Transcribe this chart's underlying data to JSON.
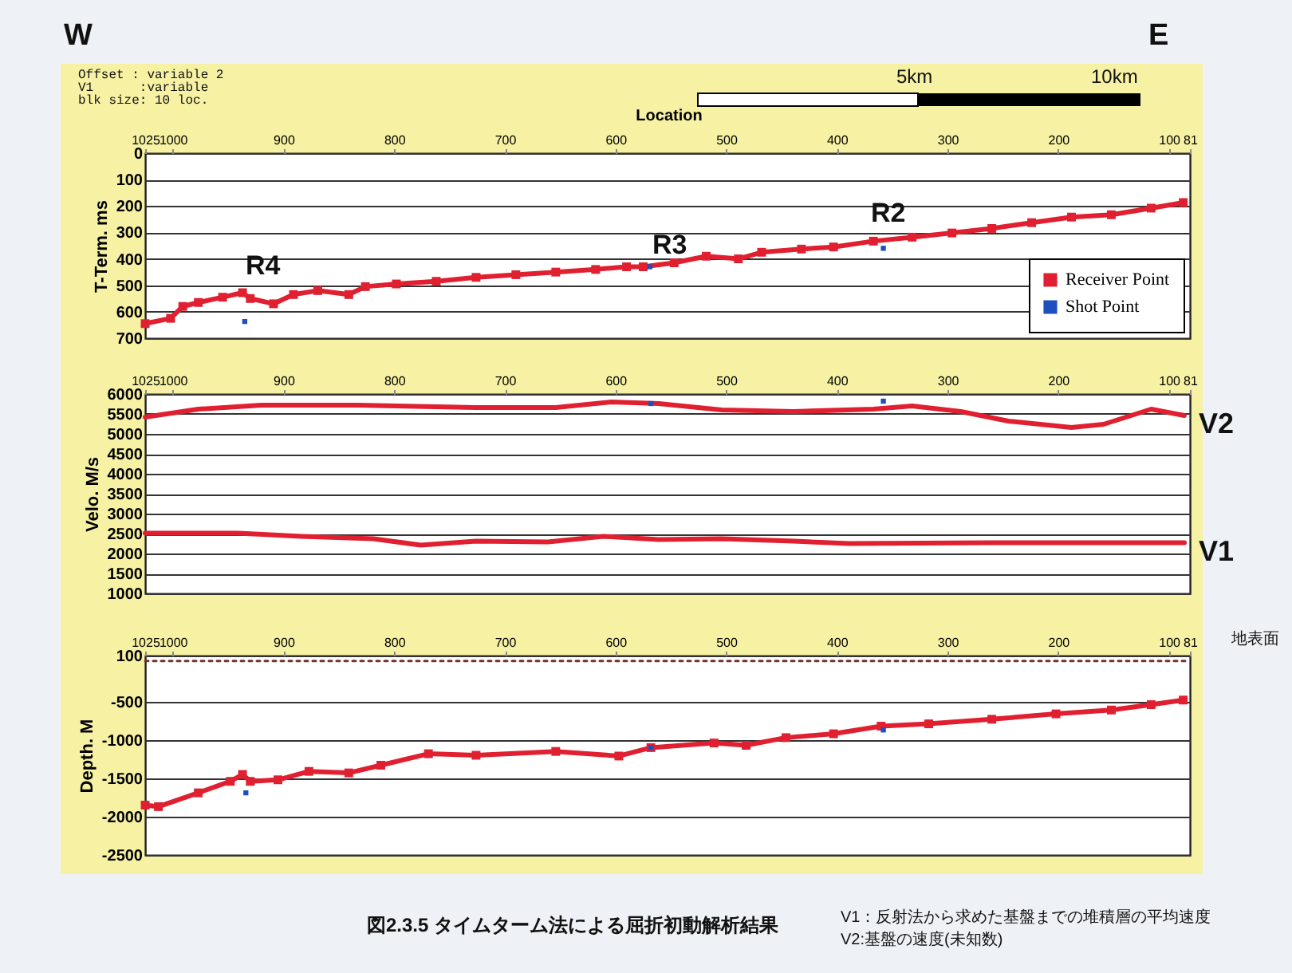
{
  "chart_data": [
    {
      "type": "line",
      "xlabel": "Location",
      "ylabel": "T-Term. ms",
      "xlim": [
        1025,
        81
      ],
      "xticks": [
        1025,
        1000,
        900,
        800,
        700,
        600,
        500,
        400,
        300,
        200,
        100,
        81
      ],
      "ylim": [
        700,
        0
      ],
      "yticks": [
        0,
        100,
        200,
        300,
        400,
        500,
        600,
        700
      ],
      "grid": "y",
      "legend": "bottom right",
      "annotations": [
        "W",
        "E",
        "Offset : variable 2",
        "V1      :variable",
        "blk size: 10 loc.",
        "5km",
        "10km",
        "R4",
        "R3",
        "R2"
      ],
      "series": [
        {
          "name": "Receiver Point",
          "color": "#e02030",
          "marker": "square",
          "x": [
            1025,
            1002,
            991,
            977,
            955,
            937,
            930,
            909,
            891,
            869,
            841,
            826,
            798,
            762,
            726,
            690,
            654,
            618,
            590,
            575,
            547,
            518,
            489,
            468,
            432,
            403,
            367,
            332,
            296,
            260,
            224,
            188,
            152,
            116,
            87
          ],
          "values": [
            645,
            625,
            580,
            565,
            545,
            528,
            550,
            570,
            535,
            520,
            535,
            505,
            495,
            485,
            470,
            460,
            450,
            440,
            430,
            430,
            415,
            390,
            400,
            375,
            363,
            355,
            333,
            318,
            302,
            285,
            263,
            242,
            233,
            208,
            187
          ]
        },
        {
          "name": "Shot Point",
          "type": "scatter",
          "color": "#1f4fbf",
          "marker": "square",
          "x": [
            935,
            569,
            358
          ],
          "values": [
            637,
            430,
            360
          ]
        }
      ]
    },
    {
      "type": "line",
      "ylabel": "Velo. M/s",
      "xlim": [
        1025,
        81
      ],
      "xticks": [
        1025,
        1000,
        900,
        800,
        700,
        600,
        500,
        400,
        300,
        200,
        100,
        81
      ],
      "ylim": [
        1000,
        6000
      ],
      "yticks": [
        1000,
        1500,
        2000,
        2500,
        3000,
        3500,
        4000,
        4500,
        5000,
        5500,
        6000
      ],
      "grid": "y",
      "series": [
        {
          "name": "V2",
          "color": "#e02030",
          "x": [
            1025,
            977,
            920,
            833,
            726,
            654,
            604,
            561,
            504,
            439,
            367,
            332,
            288,
            245,
            188,
            159,
            116,
            86
          ],
          "values": [
            5420,
            5620,
            5720,
            5720,
            5660,
            5660,
            5800,
            5760,
            5600,
            5560,
            5620,
            5700,
            5560,
            5320,
            5160,
            5240,
            5620,
            5460
          ]
        },
        {
          "name": "V1",
          "color": "#e02030",
          "x": [
            1025,
            941,
            884,
            819,
            776,
            726,
            661,
            611,
            561,
            504,
            439,
            389,
            260,
            86
          ],
          "values": [
            2510,
            2510,
            2430,
            2370,
            2210,
            2310,
            2290,
            2430,
            2350,
            2370,
            2310,
            2250,
            2270,
            2270
          ]
        },
        {
          "type": "scatter",
          "color": "#1f4fbf",
          "marker": "square",
          "x": [
            568,
            358
          ],
          "values": [
            5760,
            5820
          ]
        }
      ]
    },
    {
      "type": "line",
      "ylabel": "Depth. M",
      "xlim": [
        1025,
        81
      ],
      "xticks": [
        1025,
        1000,
        900,
        800,
        700,
        600,
        500,
        400,
        300,
        200,
        100,
        81
      ],
      "ylim": [
        -2500,
        100
      ],
      "yticks": [
        -2500,
        -2000,
        -1500,
        -1000,
        -500,
        100
      ],
      "grid": "y",
      "annotations": [
        "図2.3.5 タイムターム法による屈折初動解析結果",
        "V1：反射法から求めた基盤までの堆積層の平均速度",
        "V2:基盤の速度(未知数)"
      ],
      "series": [
        {
          "color": "#e02030",
          "marker": "square",
          "x": [
            1025,
            1013,
            977,
            948,
            937,
            930,
            905,
            877,
            841,
            812,
            769,
            726,
            654,
            597,
            568,
            511,
            482,
            446,
            403,
            360,
            317,
            260,
            202,
            152,
            116,
            87
          ],
          "values": [
            -1850,
            -1870,
            -1690,
            -1540,
            -1450,
            -1540,
            -1520,
            -1410,
            -1430,
            -1330,
            -1180,
            -1200,
            -1150,
            -1210,
            -1100,
            -1040,
            -1070,
            -970,
            -920,
            -820,
            -790,
            -730,
            -660,
            -610,
            -540,
            -480
          ]
        },
        {
          "type": "scatter",
          "color": "#1f4fbf",
          "marker": "square",
          "x": [
            934,
            568,
            358
          ],
          "values": [
            -1690,
            -1100,
            -870
          ]
        },
        {
          "name": "地表面",
          "color": "#7a3030",
          "line_style": "dotted",
          "x": [
            1025,
            81
          ],
          "values": [
            30,
            30
          ]
        }
      ]
    }
  ]
}
